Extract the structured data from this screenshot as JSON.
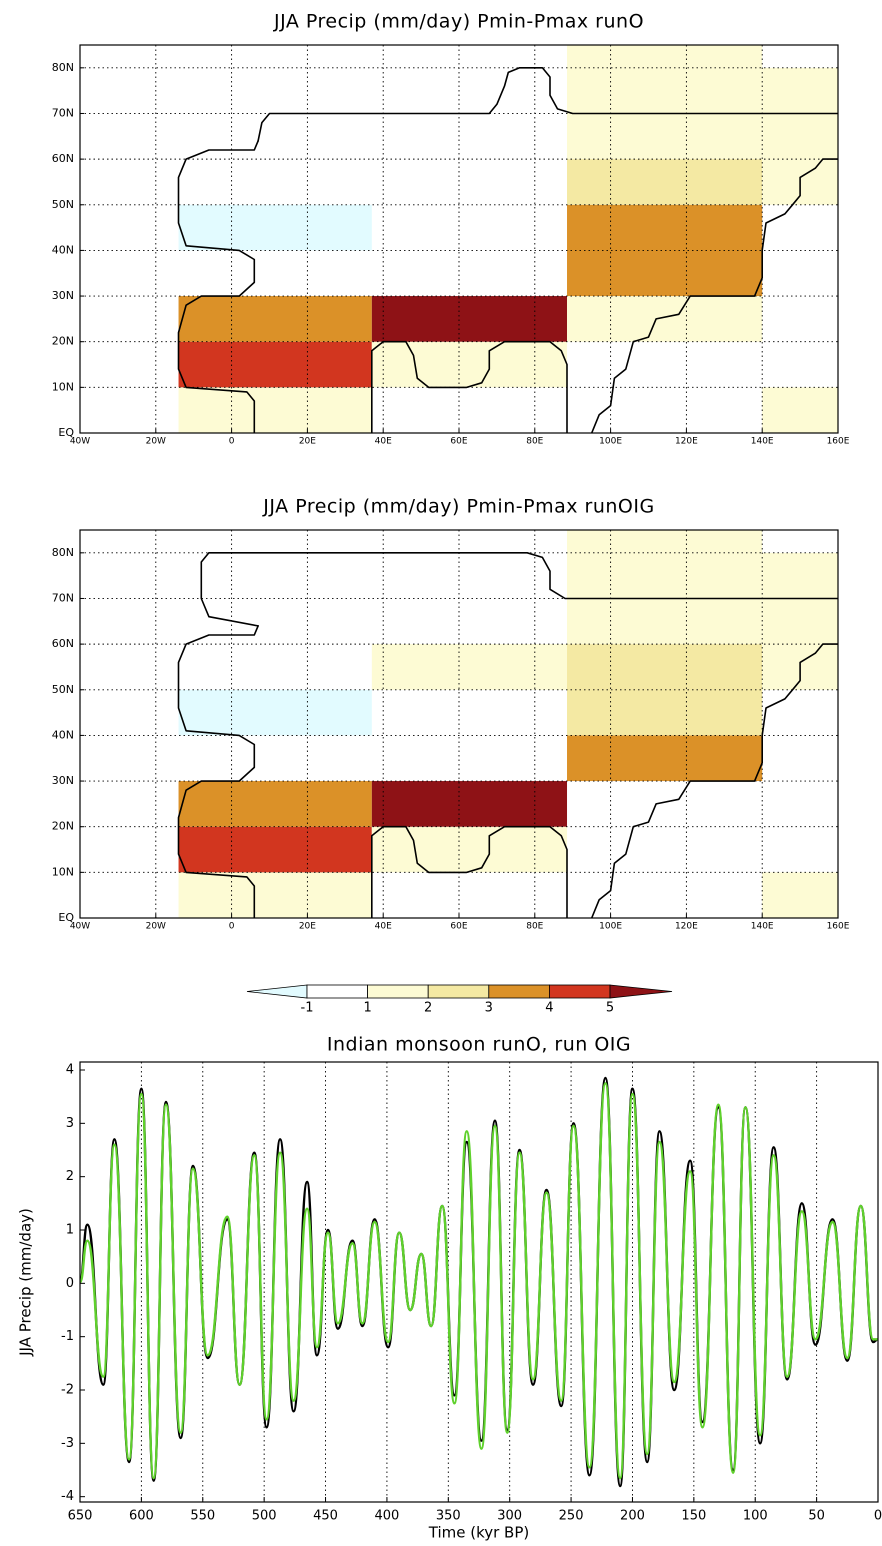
{
  "chart_data": [
    {
      "type": "heatmap",
      "title": "JJA Precip (mm/day) Pmin-Pmax runO",
      "xlim": [
        -40,
        160
      ],
      "ylim": [
        0,
        85
      ],
      "xticks": [
        {
          "value": -40,
          "label": "40W"
        },
        {
          "value": -20,
          "label": "20W"
        },
        0,
        {
          "value": 20,
          "label": "20E"
        },
        {
          "value": 40,
          "label": "40E"
        },
        {
          "value": 60,
          "label": "60E"
        },
        {
          "value": 80,
          "label": "80E"
        },
        {
          "value": 100,
          "label": "100E"
        },
        {
          "value": 120,
          "label": "120E"
        },
        {
          "value": 140,
          "label": "140E"
        },
        {
          "value": 160,
          "label": "160E"
        }
      ],
      "yticks": [
        {
          "value": 0,
          "label": "EQ"
        },
        {
          "value": 10,
          "label": "10N"
        },
        {
          "value": 20,
          "label": "20N"
        },
        {
          "value": 30,
          "label": "30N"
        },
        {
          "value": 40,
          "label": "40N"
        },
        {
          "value": 50,
          "label": "50N"
        },
        {
          "value": 60,
          "label": "60N"
        },
        {
          "value": 70,
          "label": "70N"
        },
        {
          "value": 80,
          "label": "80N"
        }
      ],
      "grid": true,
      "cells": [
        {
          "lon": [
            -14,
            37
          ],
          "lat": [
            0,
            10
          ],
          "value": 1.5
        },
        {
          "lon": [
            -14,
            37
          ],
          "lat": [
            10,
            20
          ],
          "value": 4.5
        },
        {
          "lon": [
            -14,
            37
          ],
          "lat": [
            20,
            30
          ],
          "value": 3.5
        },
        {
          "lon": [
            -14,
            37
          ],
          "lat": [
            40,
            50
          ],
          "value": -1.5
        },
        {
          "lon": [
            37,
            88.5
          ],
          "lat": [
            10,
            20
          ],
          "value": 1.5
        },
        {
          "lon": [
            37,
            88.5
          ],
          "lat": [
            20,
            30
          ],
          "value": 5.5
        },
        {
          "lon": [
            88.5,
            140
          ],
          "lat": [
            20,
            30
          ],
          "value": 1.5
        },
        {
          "lon": [
            88.5,
            140
          ],
          "lat": [
            30,
            50
          ],
          "value": 3.5
        },
        {
          "lon": [
            88.5,
            140
          ],
          "lat": [
            50,
            60
          ],
          "value": 2.5
        },
        {
          "lon": [
            88.5,
            140
          ],
          "lat": [
            60,
            90
          ],
          "value": 1.5
        },
        {
          "lon": [
            140,
            191.5
          ],
          "lat": [
            0,
            10
          ],
          "value": 1.5
        },
        {
          "lon": [
            140,
            191.5
          ],
          "lat": [
            50,
            80
          ],
          "value": 1.5
        }
      ]
    },
    {
      "type": "heatmap",
      "title": "JJA Precip (mm/day) Pmin-Pmax runOIG",
      "xlim": [
        -40,
        160
      ],
      "ylim": [
        0,
        85
      ],
      "xticks": [
        {
          "value": -40,
          "label": "40W"
        },
        {
          "value": -20,
          "label": "20W"
        },
        0,
        {
          "value": 20,
          "label": "20E"
        },
        {
          "value": 40,
          "label": "40E"
        },
        {
          "value": 60,
          "label": "60E"
        },
        {
          "value": 80,
          "label": "80E"
        },
        {
          "value": 100,
          "label": "100E"
        },
        {
          "value": 120,
          "label": "120E"
        },
        {
          "value": 140,
          "label": "140E"
        },
        {
          "value": 160,
          "label": "160E"
        }
      ],
      "yticks": [
        {
          "value": 0,
          "label": "EQ"
        },
        {
          "value": 10,
          "label": "10N"
        },
        {
          "value": 20,
          "label": "20N"
        },
        {
          "value": 30,
          "label": "30N"
        },
        {
          "value": 40,
          "label": "40N"
        },
        {
          "value": 50,
          "label": "50N"
        },
        {
          "value": 60,
          "label": "60N"
        },
        {
          "value": 70,
          "label": "70N"
        },
        {
          "value": 80,
          "label": "80N"
        }
      ],
      "grid": true,
      "cells": [
        {
          "lon": [
            -14,
            37
          ],
          "lat": [
            0,
            10
          ],
          "value": 1.5
        },
        {
          "lon": [
            -14,
            37
          ],
          "lat": [
            10,
            20
          ],
          "value": 4.5
        },
        {
          "lon": [
            -14,
            37
          ],
          "lat": [
            20,
            30
          ],
          "value": 3.5
        },
        {
          "lon": [
            -14,
            37
          ],
          "lat": [
            40,
            50
          ],
          "value": -1.5
        },
        {
          "lon": [
            37,
            88.5
          ],
          "lat": [
            10,
            20
          ],
          "value": 1.5
        },
        {
          "lon": [
            37,
            88.5
          ],
          "lat": [
            20,
            30
          ],
          "value": 5.5
        },
        {
          "lon": [
            37,
            88.5
          ],
          "lat": [
            50,
            60
          ],
          "value": 1.5
        },
        {
          "lon": [
            88.5,
            140
          ],
          "lat": [
            30,
            40
          ],
          "value": 3.5
        },
        {
          "lon": [
            88.5,
            140
          ],
          "lat": [
            40,
            60
          ],
          "value": 2.5
        },
        {
          "lon": [
            88.5,
            140
          ],
          "lat": [
            60,
            90
          ],
          "value": 1.5
        },
        {
          "lon": [
            140,
            191.5
          ],
          "lat": [
            0,
            10
          ],
          "value": 1.5
        },
        {
          "lon": [
            140,
            191.5
          ],
          "lat": [
            50,
            80
          ],
          "value": 1.5
        }
      ]
    },
    {
      "type": "colorbar",
      "levels": [
        -1,
        1,
        2,
        3,
        4,
        5
      ],
      "colors": [
        "#e2fbff",
        "#ffffff",
        "#fdfbd4",
        "#f4e9a3",
        "#db9128",
        "#d2361f",
        "#8e1216"
      ]
    },
    {
      "type": "line",
      "title": "Indian monsoon runO, run OIG",
      "xlabel": "Time (kyr BP)",
      "ylabel": "JJA Precip (mm/day)",
      "x": [
        650,
        644,
        631,
        622,
        610,
        600,
        590,
        580,
        568,
        558,
        546,
        530,
        520,
        508,
        498,
        487,
        476,
        465,
        457,
        448,
        440,
        428,
        420,
        410,
        399,
        390,
        381,
        372,
        364,
        355,
        345,
        335,
        323,
        312,
        302,
        292,
        281,
        270,
        258,
        248,
        235,
        222,
        210,
        200,
        188,
        178,
        166,
        153,
        143,
        130,
        118,
        108,
        96,
        85,
        74,
        62,
        51,
        37,
        25,
        14,
        4,
        0
      ],
      "xlim": [
        650,
        0
      ],
      "ylim": [
        -4.1,
        4.15
      ],
      "xticks": [
        650,
        600,
        550,
        500,
        450,
        400,
        350,
        300,
        250,
        200,
        150,
        100,
        50,
        0
      ],
      "yticks": [
        -4,
        -3,
        -2,
        -1,
        0,
        1,
        2,
        3,
        4
      ],
      "grid": true,
      "series": [
        {
          "color": "#000000",
          "values": [
            0.05,
            1.1,
            -1.9,
            2.7,
            -3.35,
            3.65,
            -3.7,
            3.4,
            -2.9,
            2.2,
            -1.4,
            1.2,
            -1.9,
            2.45,
            -2.7,
            2.7,
            -2.4,
            1.9,
            -1.35,
            1.0,
            -0.85,
            0.8,
            -0.8,
            1.2,
            -1.2,
            0.95,
            -0.5,
            0.55,
            -0.8,
            1.45,
            -2.1,
            2.65,
            -2.95,
            3.05,
            -2.75,
            2.5,
            -1.9,
            1.75,
            -2.3,
            3.0,
            -3.6,
            3.85,
            -3.8,
            3.65,
            -3.35,
            2.85,
            -2.0,
            2.3,
            -2.6,
            3.3,
            -3.5,
            3.3,
            -3.0,
            2.55,
            -1.8,
            1.5,
            -1.15,
            1.2,
            -1.45,
            1.45,
            -1.1,
            -1.05
          ]
        },
        {
          "color": "#5fd12c",
          "values": [
            0.02,
            0.8,
            -1.75,
            2.6,
            -3.3,
            3.55,
            -3.65,
            3.35,
            -2.8,
            2.15,
            -1.35,
            1.25,
            -1.9,
            2.4,
            -2.55,
            2.45,
            -2.2,
            1.4,
            -1.2,
            0.95,
            -0.75,
            0.75,
            -0.75,
            1.15,
            -1.1,
            0.95,
            -0.5,
            0.55,
            -0.8,
            1.45,
            -2.25,
            2.85,
            -3.1,
            2.95,
            -2.8,
            2.45,
            -1.8,
            1.7,
            -2.2,
            2.95,
            -3.45,
            3.75,
            -3.65,
            3.55,
            -3.2,
            2.65,
            -1.85,
            2.1,
            -2.7,
            3.35,
            -3.55,
            3.3,
            -2.85,
            2.4,
            -1.75,
            1.35,
            -1.05,
            1.15,
            -1.4,
            1.45,
            -1.05,
            -1.05
          ]
        }
      ]
    }
  ]
}
